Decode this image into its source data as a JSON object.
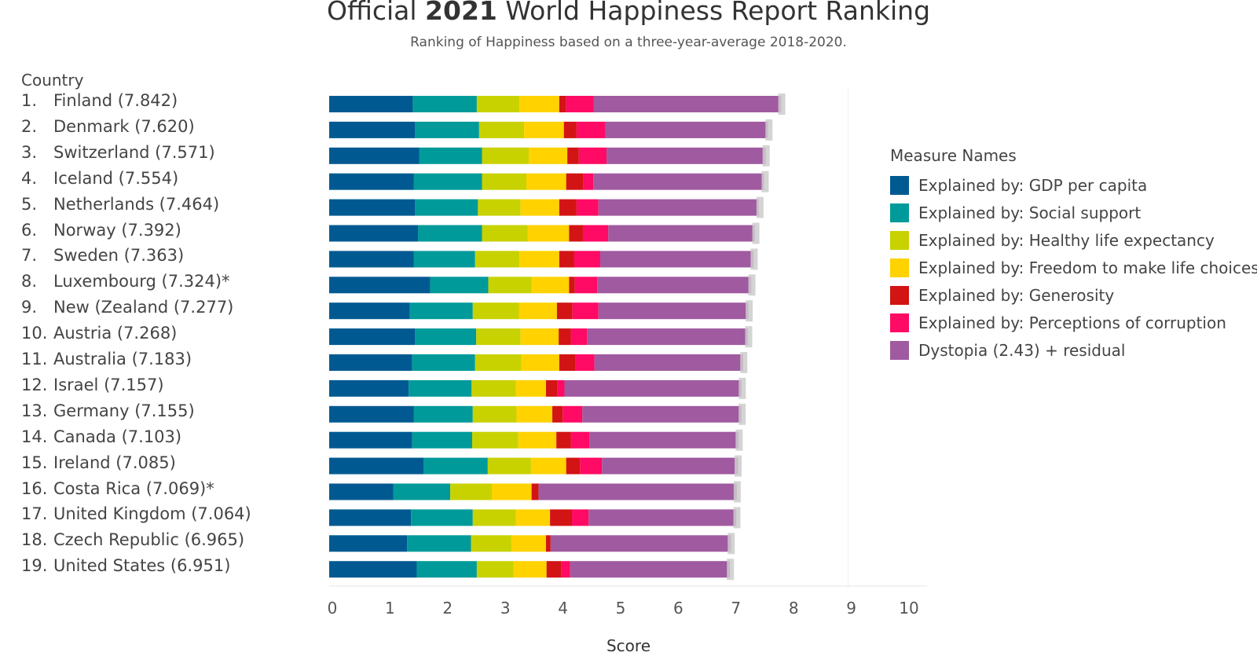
{
  "title_prefix": "Official ",
  "title_year": "2021",
  "title_suffix": " World Happiness Report Ranking",
  "subtitle": "Ranking of Happiness based on a three-year-average 2018-2020.",
  "country_header": "Country",
  "legend_title": "Measure Names",
  "colors": {
    "gdp": "#005a91",
    "social": "#009a9a",
    "health": "#c8d200",
    "freedom": "#ffd200",
    "generosity": "#d21414",
    "corruption": "#ff0a64",
    "dystopia": "#a05aa0",
    "error": "#cccccc"
  },
  "chart_data": {
    "type": "bar",
    "orientation": "horizontal",
    "stacked": true,
    "title": "Official 2021 World Happiness Report Ranking",
    "subtitle": "Ranking of Happiness based on a three-year-average 2018-2020.",
    "xlabel": "Score",
    "ylabel": "Country",
    "xlim": [
      0,
      10
    ],
    "xticks": [
      0,
      1,
      2,
      3,
      4,
      5,
      6,
      7,
      8,
      9,
      10
    ],
    "legend_position": "right",
    "rows": [
      {
        "rank": "1.",
        "label": "Finland (7.842)",
        "total": 7.842
      },
      {
        "rank": "2.",
        "label": "Denmark (7.620)",
        "total": 7.62
      },
      {
        "rank": "3.",
        "label": "Switzerland (7.571)",
        "total": 7.571
      },
      {
        "rank": "4.",
        "label": "Iceland (7.554)",
        "total": 7.554
      },
      {
        "rank": "5.",
        "label": "Netherlands (7.464)",
        "total": 7.464
      },
      {
        "rank": "6.",
        "label": "Norway (7.392)",
        "total": 7.392
      },
      {
        "rank": "7.",
        "label": "Sweden (7.363)",
        "total": 7.363
      },
      {
        "rank": "8.",
        "label": "Luxembourg (7.324)*",
        "total": 7.324
      },
      {
        "rank": "9.",
        "label": "New (Zealand (7.277)",
        "total": 7.277
      },
      {
        "rank": "10.",
        "label": "Austria (7.268)",
        "total": 7.268
      },
      {
        "rank": "11.",
        "label": "Australia (7.183)",
        "total": 7.183
      },
      {
        "rank": "12.",
        "label": "Israel (7.157)",
        "total": 7.157
      },
      {
        "rank": "13.",
        "label": "Germany (7.155)",
        "total": 7.155
      },
      {
        "rank": "14.",
        "label": "Canada (7.103)",
        "total": 7.103
      },
      {
        "rank": "15.",
        "label": "Ireland (7.085)",
        "total": 7.085
      },
      {
        "rank": "16.",
        "label": "Costa Rica (7.069)*",
        "total": 7.069
      },
      {
        "rank": "17.",
        "label": "United Kingdom (7.064)",
        "total": 7.064
      },
      {
        "rank": "18.",
        "label": "Czech Republic (6.965)",
        "total": 6.965
      },
      {
        "rank": "19.",
        "label": "United States (6.951)",
        "total": 6.951
      }
    ],
    "series": [
      {
        "name": "Explained by: GDP per capita",
        "color_key": "gdp",
        "values": [
          1.45,
          1.49,
          1.56,
          1.47,
          1.49,
          1.54,
          1.47,
          1.75,
          1.4,
          1.49,
          1.44,
          1.38,
          1.47,
          1.44,
          1.64,
          1.11,
          1.42,
          1.35,
          1.52
        ]
      },
      {
        "name": "Explained by: Social support",
        "color_key": "social",
        "values": [
          1.11,
          1.11,
          1.09,
          1.18,
          1.09,
          1.11,
          1.06,
          1.01,
          1.09,
          1.06,
          1.09,
          1.09,
          1.02,
          1.04,
          1.11,
          0.99,
          1.07,
          1.11,
          1.04
        ]
      },
      {
        "name": "Explained by: Healthy life expectancy",
        "color_key": "health",
        "values": [
          0.74,
          0.78,
          0.81,
          0.77,
          0.74,
          0.79,
          0.77,
          0.75,
          0.8,
          0.77,
          0.8,
          0.77,
          0.76,
          0.8,
          0.75,
          0.72,
          0.75,
          0.7,
          0.64
        ]
      },
      {
        "name": "Explained by: Freedom to make life choices",
        "color_key": "freedom",
        "values": [
          0.69,
          0.69,
          0.67,
          0.69,
          0.67,
          0.72,
          0.69,
          0.65,
          0.66,
          0.66,
          0.66,
          0.52,
          0.62,
          0.66,
          0.61,
          0.69,
          0.59,
          0.6,
          0.57
        ]
      },
      {
        "name": "Explained by: Generosity",
        "color_key": "generosity",
        "values": [
          0.12,
          0.22,
          0.2,
          0.3,
          0.3,
          0.24,
          0.26,
          0.1,
          0.27,
          0.21,
          0.28,
          0.2,
          0.18,
          0.25,
          0.24,
          0.12,
          0.38,
          0.08,
          0.26
        ]
      },
      {
        "name": "Explained by: Perceptions of corruption",
        "color_key": "corruption",
        "values": [
          0.48,
          0.5,
          0.48,
          0.17,
          0.38,
          0.44,
          0.45,
          0.39,
          0.45,
          0.28,
          0.33,
          0.12,
          0.34,
          0.32,
          0.38,
          0.0,
          0.29,
          0.0,
          0.15
        ]
      },
      {
        "name": "Dystopia (2.43) + residual",
        "color_key": "dystopia",
        "values": [
          3.25,
          2.82,
          2.76,
          2.96,
          2.78,
          2.54,
          2.66,
          2.67,
          2.6,
          2.79,
          2.58,
          3.07,
          2.76,
          2.59,
          2.36,
          3.44,
          2.56,
          3.13,
          2.77
        ]
      }
    ]
  }
}
